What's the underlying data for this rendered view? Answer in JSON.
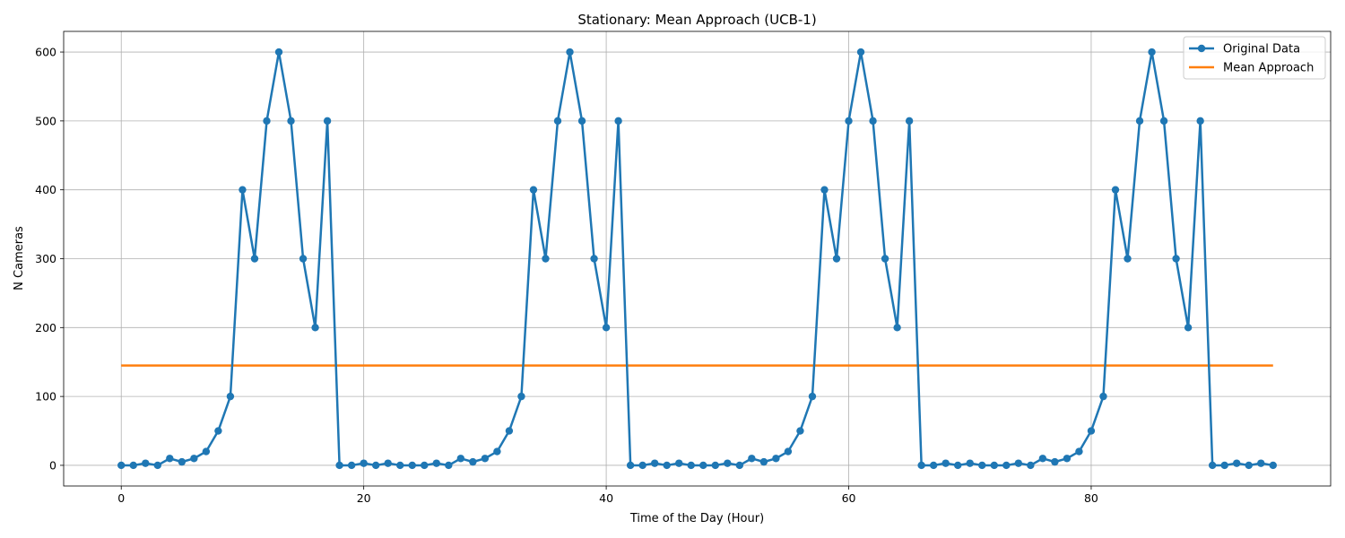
{
  "chart_data": {
    "type": "line",
    "title": "Stationary: Mean Approach (UCB-1)",
    "xlabel": "Time of the Day (Hour)",
    "ylabel": "N Cameras",
    "xlim": [
      -4.75,
      99.75
    ],
    "ylim": [
      -30,
      630
    ],
    "xticks": [
      0,
      20,
      40,
      60,
      80
    ],
    "yticks": [
      0,
      100,
      200,
      300,
      400,
      500,
      600
    ],
    "grid": true,
    "legend_position": "top-right",
    "colors": {
      "original": "#1f77b4",
      "mean": "#ff7f0e"
    },
    "series": [
      {
        "name": "Original Data",
        "marker": "circle",
        "x": [
          0,
          1,
          2,
          3,
          4,
          5,
          6,
          7,
          8,
          9,
          10,
          11,
          12,
          13,
          14,
          15,
          16,
          17,
          18,
          19,
          20,
          21,
          22,
          23,
          24,
          25,
          26,
          27,
          28,
          29,
          30,
          31,
          32,
          33,
          34,
          35,
          36,
          37,
          38,
          39,
          40,
          41,
          42,
          43,
          44,
          45,
          46,
          47,
          48,
          49,
          50,
          51,
          52,
          53,
          54,
          55,
          56,
          57,
          58,
          59,
          60,
          61,
          62,
          63,
          64,
          65,
          66,
          67,
          68,
          69,
          70,
          71,
          72,
          73,
          74,
          75,
          76,
          77,
          78,
          79,
          80,
          81,
          82,
          83,
          84,
          85,
          86,
          87,
          88,
          89,
          90,
          91,
          92,
          93,
          94,
          95
        ],
        "values": [
          0,
          0,
          3,
          0,
          10,
          5,
          10,
          20,
          50,
          100,
          400,
          300,
          500,
          600,
          500,
          300,
          200,
          500,
          0,
          0,
          3,
          0,
          3,
          0,
          0,
          0,
          3,
          0,
          10,
          5,
          10,
          20,
          50,
          100,
          400,
          300,
          500,
          600,
          500,
          300,
          200,
          500,
          0,
          0,
          3,
          0,
          3,
          0,
          0,
          0,
          3,
          0,
          10,
          5,
          10,
          20,
          50,
          100,
          400,
          300,
          500,
          600,
          500,
          300,
          200,
          500,
          0,
          0,
          3,
          0,
          3,
          0,
          0,
          0,
          3,
          0,
          10,
          5,
          10,
          20,
          50,
          100,
          400,
          300,
          500,
          600,
          500,
          300,
          200,
          500,
          0,
          0,
          3,
          0,
          3,
          0
        ]
      },
      {
        "name": "Mean Approach",
        "marker": "none",
        "x": [
          0,
          95
        ],
        "values": [
          145,
          145
        ]
      }
    ]
  }
}
